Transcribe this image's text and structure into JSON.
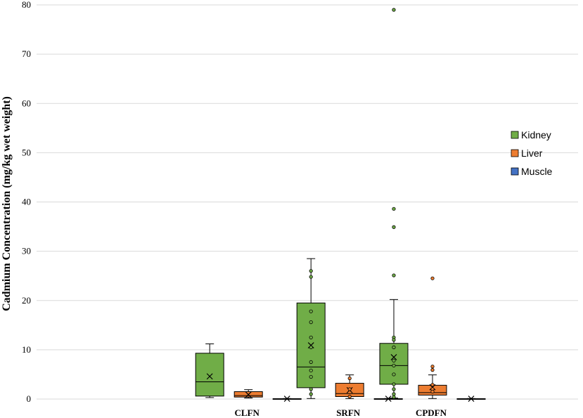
{
  "chart_data": {
    "type": "box",
    "title": "",
    "xlabel": "",
    "ylabel": "Cadmium Concentration (mg/kg wet weight)",
    "ylim": [
      0,
      80
    ],
    "yticks": [
      0,
      10,
      20,
      30,
      40,
      50,
      60,
      70,
      80
    ],
    "grid": "horizontal",
    "legend_position": "right",
    "categories": [
      "CLFN",
      "SRFN",
      "CPDFN"
    ],
    "series": [
      {
        "name": "Kidney",
        "color": "#70ad47",
        "boxes": [
          {
            "category": "CLFN",
            "min": 0.3,
            "q1": 0.6,
            "median": 3.5,
            "q3": 9.3,
            "max": 11.2,
            "mean": 4.6,
            "points": []
          },
          {
            "category": "SRFN",
            "min": 0.1,
            "q1": 2.3,
            "median": 6.5,
            "q3": 19.5,
            "max": 28.5,
            "mean": 10.9,
            "points": [
              26.0,
              24.8,
              17.8,
              15.6,
              12.5,
              10.5,
              7.5,
              5.8,
              4.5,
              2.0,
              1.0
            ]
          },
          {
            "category": "CPDFN",
            "min": 0.2,
            "q1": 3.0,
            "median": 6.8,
            "q3": 11.3,
            "max": 20.2,
            "mean": 8.5,
            "points": [
              79.0,
              38.6,
              34.9,
              25.1,
              12.5,
              12.0,
              10.5,
              7.8,
              6.8,
              5.0,
              3.0,
              2.0,
              1.0,
              0.4
            ]
          }
        ]
      },
      {
        "name": "Liver",
        "color": "#ed7d31",
        "boxes": [
          {
            "category": "CLFN",
            "min": 0.2,
            "q1": 0.4,
            "median": 0.7,
            "q3": 1.5,
            "max": 1.9,
            "mean": 0.9,
            "points": []
          },
          {
            "category": "SRFN",
            "min": 0.1,
            "q1": 0.5,
            "median": 1.1,
            "q3": 3.2,
            "max": 4.9,
            "mean": 1.8,
            "points": [
              4.2,
              2.0,
              0.5
            ]
          },
          {
            "category": "CPDFN",
            "min": 0.1,
            "q1": 0.8,
            "median": 1.3,
            "q3": 2.8,
            "max": 4.9,
            "mean": 2.4,
            "points": [
              24.5,
              6.6,
              5.9,
              2.9,
              2.0,
              1.5
            ]
          }
        ]
      },
      {
        "name": "Muscle",
        "color": "#4472c4",
        "boxes": [
          {
            "category": "CLFN",
            "min": 0.02,
            "q1": 0.04,
            "median": 0.06,
            "q3": 0.08,
            "max": 0.1,
            "mean": 0.06,
            "points": []
          },
          {
            "category": "SRFN",
            "min": 0.02,
            "q1": 0.04,
            "median": 0.06,
            "q3": 0.08,
            "max": 0.1,
            "mean": 0.06,
            "points": []
          },
          {
            "category": "CPDFN",
            "min": 0.02,
            "q1": 0.04,
            "median": 0.06,
            "q3": 0.08,
            "max": 0.1,
            "mean": 0.06,
            "points": []
          }
        ]
      }
    ]
  }
}
